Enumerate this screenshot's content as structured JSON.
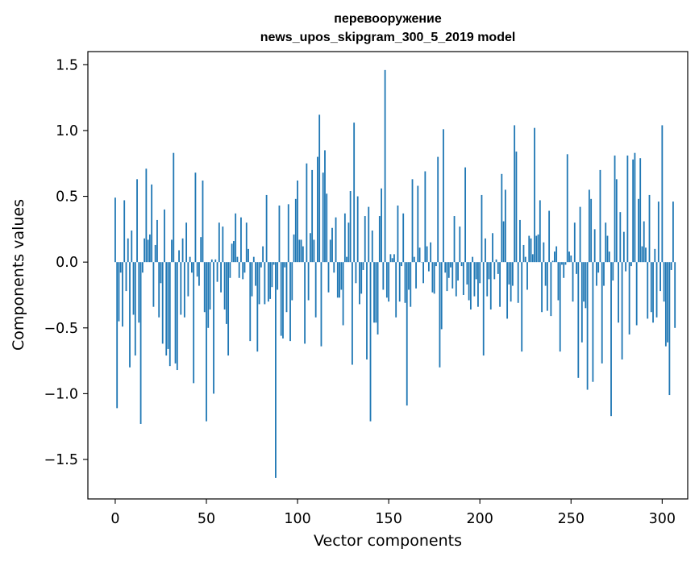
{
  "chart_data": {
    "type": "bar",
    "title_line1": "перевооружение",
    "title_line2": "news_upos_skipgram_300_5_2019 model",
    "xlabel": "Vector components",
    "ylabel": "Components values",
    "xlim": [
      -15,
      314
    ],
    "ylim": [
      -1.8,
      1.6
    ],
    "xticks": [
      0,
      50,
      100,
      150,
      200,
      250,
      300
    ],
    "xtick_labels": [
      "0",
      "50",
      "100",
      "150",
      "200",
      "250",
      "300"
    ],
    "yticks": [
      -1.5,
      -1.0,
      -0.5,
      0.0,
      0.5,
      1.0,
      1.5
    ],
    "ytick_labels": [
      "−1.5",
      "−1.0",
      "−0.5",
      "0.0",
      "0.5",
      "1.0",
      "1.5"
    ],
    "bar_color": "#1f77b4",
    "categories_start": 0,
    "values": [
      0.49,
      -1.11,
      -0.45,
      -0.08,
      -0.49,
      0.47,
      -0.22,
      0.18,
      -0.8,
      0.24,
      -0.4,
      -0.71,
      0.63,
      -0.46,
      -1.23,
      -0.08,
      0.18,
      0.71,
      0.17,
      0.21,
      0.59,
      -0.34,
      0.13,
      0.32,
      -0.42,
      -0.16,
      -0.62,
      0.4,
      -0.71,
      -0.66,
      -0.79,
      0.17,
      0.83,
      -0.77,
      -0.82,
      0.09,
      -0.4,
      0.18,
      -0.42,
      0.3,
      -0.26,
      0.04,
      -0.08,
      -0.92,
      0.68,
      -0.11,
      -0.18,
      0.19,
      0.62,
      -0.38,
      -1.21,
      -0.5,
      -0.36,
      0.02,
      -1.0,
      0.02,
      -0.15,
      0.3,
      -0.23,
      0.27,
      -0.36,
      -0.47,
      -0.71,
      -0.12,
      0.14,
      0.16,
      0.37,
      0.04,
      -0.12,
      0.34,
      -0.13,
      -0.08,
      0.3,
      0.1,
      -0.6,
      -0.26,
      0.04,
      -0.18,
      -0.68,
      -0.32,
      -0.04,
      0.12,
      -0.32,
      0.51,
      -0.3,
      -0.28,
      -0.19,
      -0.02,
      -1.64,
      -0.21,
      0.43,
      -0.56,
      -0.58,
      -0.04,
      -0.38,
      0.44,
      -0.6,
      -0.29,
      0.21,
      0.48,
      0.62,
      0.17,
      0.17,
      0.12,
      -0.62,
      0.75,
      -0.29,
      0.22,
      0.7,
      0.17,
      -0.42,
      0.8,
      1.12,
      -0.64,
      0.68,
      0.85,
      0.52,
      -0.23,
      0.17,
      0.26,
      -0.08,
      0.34,
      -0.27,
      -0.27,
      -0.21,
      -0.48,
      0.37,
      0.04,
      0.3,
      0.54,
      -0.78,
      1.06,
      -0.16,
      0.5,
      -0.32,
      -0.24,
      -0.06,
      0.35,
      -0.74,
      0.42,
      -1.21,
      0.24,
      -0.46,
      -0.46,
      -0.55,
      0.35,
      0.56,
      -0.21,
      1.46,
      -0.27,
      -0.3,
      0.06,
      0.03,
      0.06,
      -0.42,
      0.43,
      -0.3,
      -0.03,
      0.37,
      -0.31,
      -1.09,
      -0.21,
      -0.34,
      0.63,
      0.04,
      -0.2,
      0.58,
      0.11,
      0.0,
      -0.16,
      0.69,
      0.12,
      -0.07,
      0.15,
      -0.23,
      -0.24,
      -0.03,
      0.8,
      -0.8,
      -0.51,
      1.01,
      -0.08,
      -0.22,
      -0.12,
      -0.04,
      -0.2,
      0.35,
      -0.26,
      -0.14,
      0.27,
      -0.03,
      -0.25,
      0.72,
      -0.17,
      -0.29,
      -0.36,
      0.04,
      -0.26,
      -0.13,
      -0.34,
      -0.16,
      0.51,
      -0.71,
      0.18,
      -0.26,
      -0.13,
      -0.36,
      0.22,
      -0.13,
      0.02,
      -0.09,
      -0.34,
      0.67,
      0.31,
      0.55,
      -0.43,
      -0.17,
      -0.3,
      -0.18,
      1.04,
      0.84,
      -0.31,
      0.32,
      -0.68,
      0.13,
      0.04,
      -0.21,
      0.2,
      0.18,
      0.06,
      1.02,
      0.2,
      0.21,
      0.47,
      -0.38,
      0.15,
      -0.18,
      -0.37,
      0.39,
      -0.41,
      0.01,
      0.08,
      0.12,
      -0.29,
      -0.68,
      -0.02,
      -0.12,
      -0.02,
      0.82,
      0.08,
      0.05,
      -0.3,
      0.3,
      -0.09,
      -0.88,
      0.42,
      -0.61,
      -0.3,
      -0.35,
      -0.97,
      0.55,
      0.48,
      -0.91,
      0.25,
      -0.18,
      -0.08,
      0.7,
      -0.77,
      -0.18,
      0.3,
      0.2,
      0.08,
      -1.17,
      -0.14,
      0.81,
      0.63,
      -0.46,
      0.38,
      -0.74,
      0.23,
      -0.07,
      0.81,
      -0.55,
      -0.03,
      0.78,
      0.83,
      -0.48,
      0.48,
      0.79,
      0.12,
      0.31,
      0.11,
      -0.43,
      0.51,
      -0.38,
      -0.46,
      0.1,
      -0.42,
      0.46,
      -0.22,
      1.04,
      -0.3,
      -0.64,
      -0.61,
      -1.01,
      -0.06,
      0.46,
      -0.5
    ]
  }
}
